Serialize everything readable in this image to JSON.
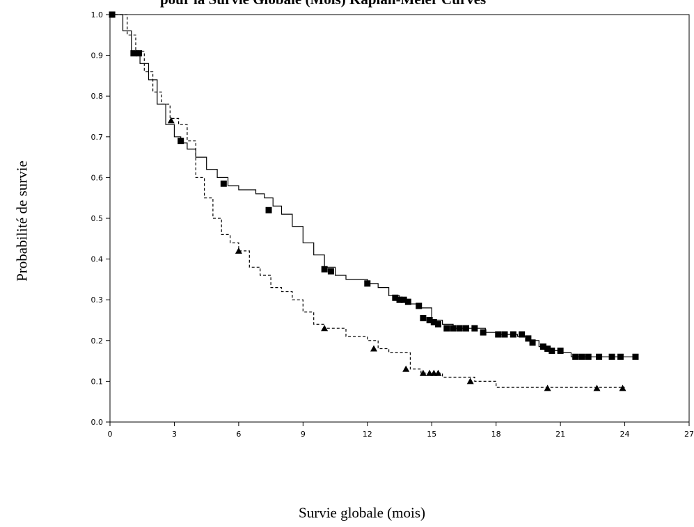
{
  "chart_data": {
    "type": "line",
    "title": "pour la Survie Globale (Mois) Kaplan-Meier Curves",
    "xlabel": "Survie globale (mois)",
    "ylabel": "Probabilité de survie",
    "xlim": [
      0,
      27
    ],
    "ylim": [
      0.0,
      1.0
    ],
    "xticks": [
      0,
      3,
      6,
      9,
      12,
      15,
      18,
      21,
      24,
      27
    ],
    "yticks": [
      0.0,
      0.1,
      0.2,
      0.3,
      0.4,
      0.5,
      0.6,
      0.7,
      0.8,
      0.9,
      1.0
    ],
    "x_tick_labels": [
      "0",
      "3",
      "6",
      "9",
      "12",
      "15",
      "18",
      "21",
      "24",
      "27"
    ],
    "y_tick_labels": [
      "0.0",
      "0.1",
      "0.2",
      "0.3",
      "0.4",
      "0.5",
      "0.6",
      "0.7",
      "0.8",
      "0.9",
      "1.0"
    ],
    "grid": false,
    "series": [
      {
        "style": "solid",
        "marker": "square",
        "x": [
          0,
          0.6,
          1.0,
          1.4,
          1.8,
          2.2,
          2.6,
          3.0,
          3.3,
          3.6,
          4.0,
          4.5,
          5.0,
          5.5,
          6.0,
          6.8,
          7.2,
          7.6,
          8.0,
          8.5,
          9.0,
          9.5,
          10.0,
          10.5,
          11.0,
          11.5,
          12.0,
          12.5,
          13.0,
          13.5,
          14.0,
          14.5,
          15.0,
          15.5,
          16.0,
          16.5,
          17.0,
          17.5,
          18.0,
          19.0,
          19.5,
          20.0,
          20.5,
          21.0,
          21.5,
          22.0,
          23.0,
          24.0,
          24.5
        ],
        "y": [
          1.0,
          0.96,
          0.91,
          0.88,
          0.84,
          0.78,
          0.73,
          0.7,
          0.685,
          0.67,
          0.65,
          0.62,
          0.6,
          0.58,
          0.57,
          0.56,
          0.55,
          0.53,
          0.51,
          0.48,
          0.44,
          0.41,
          0.38,
          0.36,
          0.35,
          0.35,
          0.34,
          0.33,
          0.31,
          0.3,
          0.29,
          0.28,
          0.25,
          0.24,
          0.23,
          0.23,
          0.23,
          0.22,
          0.215,
          0.21,
          0.2,
          0.185,
          0.175,
          0.17,
          0.16,
          0.16,
          0.16,
          0.16,
          0.16
        ],
        "markers_x": [
          0.1,
          1.1,
          1.35,
          3.3,
          5.3,
          7.4,
          10.0,
          10.3,
          12.0,
          13.3,
          13.5,
          13.7,
          13.9,
          14.4,
          14.6,
          14.9,
          15.1,
          15.3,
          15.7,
          16.0,
          16.3,
          16.6,
          17.0,
          17.4,
          18.1,
          18.4,
          18.8,
          19.2,
          19.5,
          19.7,
          20.2,
          20.4,
          20.6,
          21.0,
          21.7,
          22.0,
          22.3,
          22.8,
          23.4,
          23.8,
          24.5
        ],
        "markers_y": [
          1.0,
          0.905,
          0.905,
          0.69,
          0.585,
          0.52,
          0.375,
          0.37,
          0.34,
          0.305,
          0.3,
          0.3,
          0.295,
          0.285,
          0.255,
          0.25,
          0.245,
          0.24,
          0.23,
          0.23,
          0.23,
          0.23,
          0.23,
          0.22,
          0.215,
          0.215,
          0.215,
          0.215,
          0.205,
          0.195,
          0.185,
          0.18,
          0.175,
          0.175,
          0.16,
          0.16,
          0.16,
          0.16,
          0.16,
          0.16,
          0.16
        ]
      },
      {
        "style": "dashed",
        "marker": "triangle",
        "x": [
          0,
          0.8,
          1.2,
          1.6,
          2.0,
          2.4,
          2.8,
          3.2,
          3.6,
          4.0,
          4.4,
          4.8,
          5.2,
          5.6,
          6.0,
          6.5,
          7.0,
          7.5,
          8.0,
          8.5,
          9.0,
          9.5,
          10.0,
          11.0,
          12.0,
          12.5,
          13.0,
          14.0,
          14.5,
          15.5,
          16.0,
          17.0,
          18.0,
          19.0,
          20.0,
          21.0,
          22.0,
          23.0,
          24.0
        ],
        "y": [
          1.0,
          0.95,
          0.91,
          0.86,
          0.81,
          0.78,
          0.745,
          0.73,
          0.69,
          0.6,
          0.55,
          0.5,
          0.46,
          0.44,
          0.42,
          0.38,
          0.36,
          0.33,
          0.32,
          0.3,
          0.27,
          0.24,
          0.23,
          0.21,
          0.2,
          0.18,
          0.17,
          0.13,
          0.12,
          0.11,
          0.11,
          0.1,
          0.085,
          0.085,
          0.085,
          0.085,
          0.085,
          0.085,
          0.085
        ],
        "markers_x": [
          1.3,
          2.85,
          6.0,
          10.0,
          12.3,
          13.8,
          14.6,
          14.9,
          15.1,
          15.3,
          16.8,
          20.4,
          22.7,
          23.9
        ],
        "markers_y": [
          0.905,
          0.74,
          0.42,
          0.23,
          0.18,
          0.13,
          0.12,
          0.12,
          0.12,
          0.12,
          0.1,
          0.083,
          0.083,
          0.083
        ]
      }
    ]
  }
}
